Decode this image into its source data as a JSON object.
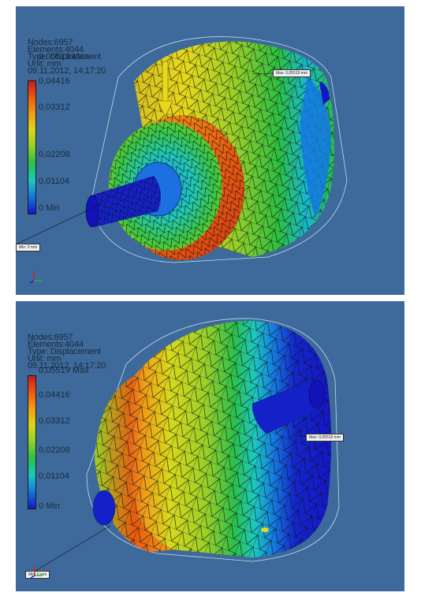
{
  "views": [
    {
      "nodes": "Nodes:6957",
      "elements": "Elements:4044",
      "type": "Type: Displacement",
      "unit": "Unit: mm",
      "date": "09.11.2012, 14:17:20",
      "legend": {
        "max": "0,05519 Max",
        "v4": "0,04416",
        "v3": "0,03312",
        "v2": "0,02208",
        "v1": "0,01104",
        "min": "0 Min"
      },
      "probe_max": "Max: 0,05519 mm",
      "probe_min": "Min: 0 mm"
    },
    {
      "nodes": "Nodes:6957",
      "elements": "Elements:4044",
      "type": "Type: Displacement",
      "unit": "Unit: mm",
      "date": "09.11.2012, 14:17:20",
      "legend": {
        "max": "0,05519 Max",
        "v4": "0,04416",
        "v3": "0,03312",
        "v2": "0,02208",
        "v1": "0,01104",
        "min": "0 Min"
      },
      "probe_max": "Max: 0,05519 mm",
      "probe_min": "Min: 0 mm"
    }
  ],
  "colors": {
    "background": "#3d6a9b",
    "max": "#c41e1e",
    "min": "#1416c8"
  }
}
